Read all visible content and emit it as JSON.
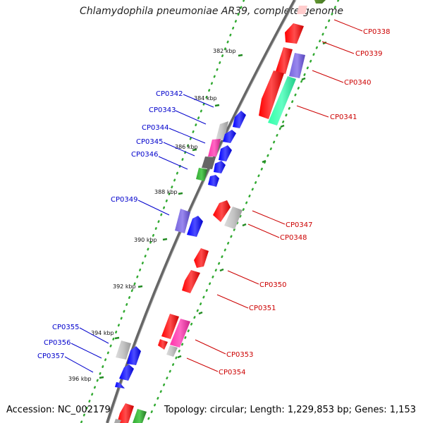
{
  "title": "Chlamydophila pneumoniae AR39, complete genome",
  "accession": "Accession: NC_002179",
  "summary": "Topology: circular; Length: 1,229,853 bp; Genes: 1,153",
  "colors": {
    "backbone": "#777777",
    "tick": "#228b22",
    "forward_label": "#0000cc",
    "reverse_label": "#cc0000",
    "blue": "#0000ff",
    "red": "#ff0000",
    "grey": "#bfbfbf",
    "magenta": "#ff33aa",
    "purple": "#7766dd",
    "green": "#33aa33",
    "aqua": "#33ffaa"
  },
  "kbp_labels": [
    "382 kbp",
    "384 kbp",
    "386 kbp",
    "388 kbp",
    "390 kbp",
    "392 kbp",
    "394 kbp",
    "396 kbp"
  ],
  "forward_genes": [
    "CP0342",
    "CP0343",
    "CP0344",
    "CP0345",
    "CP0346",
    "CP0349",
    "CP0355",
    "CP0356",
    "CP0357"
  ],
  "reverse_genes": [
    "CP0338",
    "CP0339",
    "CP0340",
    "CP0341",
    "CP0347",
    "CP0348",
    "CP0350",
    "CP0351",
    "CP0353",
    "CP0354"
  ]
}
